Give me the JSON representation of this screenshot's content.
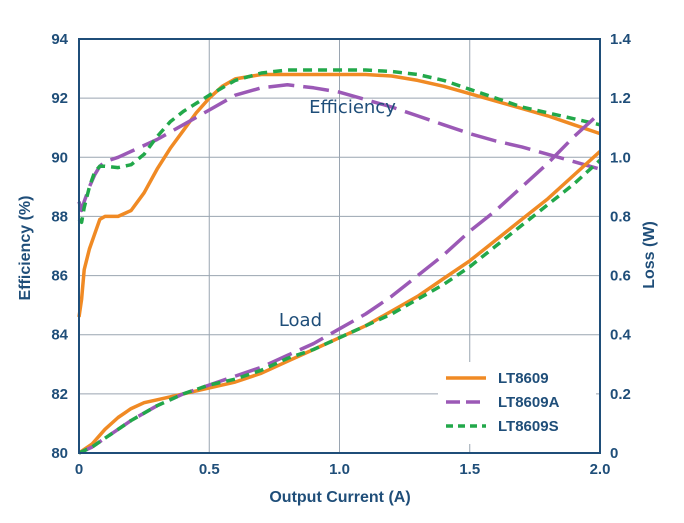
{
  "chart_data": {
    "type": "line",
    "xlabel": "Output Current (A)",
    "ylabel": "Efficiency (%)",
    "y2label": "Loss (W)",
    "xlim": [
      0,
      2.0
    ],
    "ylim": [
      80,
      94
    ],
    "y2lim": [
      0,
      1.4
    ],
    "xticks": [
      "0",
      "0.5",
      "1.0",
      "1.5",
      "2.0"
    ],
    "yticks": [
      "80",
      "82",
      "84",
      "86",
      "88",
      "90",
      "92",
      "94"
    ],
    "y2ticks": [
      "0",
      "0.2",
      "0.4",
      "0.6",
      "0.8",
      "1.0",
      "1.2",
      "1.4"
    ],
    "grid": true,
    "legend_position": "bottom-right",
    "annotations": [
      {
        "text": "Efficiency",
        "x": 1.05,
        "y": 91.5
      },
      {
        "text": "Load",
        "x": 0.85,
        "y": 84.3
      }
    ],
    "series": [
      {
        "name": "LT8609",
        "color": "#f08a24",
        "dash": "solid",
        "axis": "left",
        "group": "efficiency",
        "x": [
          0.0,
          0.01,
          0.02,
          0.04,
          0.06,
          0.08,
          0.1,
          0.15,
          0.2,
          0.25,
          0.3,
          0.35,
          0.4,
          0.45,
          0.5,
          0.55,
          0.6,
          0.7,
          0.8,
          0.9,
          1.0,
          1.1,
          1.2,
          1.3,
          1.4,
          1.5,
          1.6,
          1.7,
          1.8,
          1.9,
          2.0
        ],
        "y": [
          84.6,
          85.2,
          86.2,
          86.9,
          87.4,
          87.9,
          88.0,
          88.0,
          88.2,
          88.8,
          89.6,
          90.3,
          90.9,
          91.5,
          92.0,
          92.4,
          92.65,
          92.8,
          92.8,
          92.8,
          92.8,
          92.8,
          92.75,
          92.6,
          92.4,
          92.15,
          91.9,
          91.65,
          91.4,
          91.1,
          90.8
        ]
      },
      {
        "name": "LT8609A",
        "color": "#9b59b6",
        "dash": "long",
        "axis": "left",
        "group": "efficiency",
        "x": [
          0.0,
          0.01,
          0.02,
          0.04,
          0.06,
          0.08,
          0.1,
          0.15,
          0.2,
          0.3,
          0.4,
          0.5,
          0.6,
          0.7,
          0.8,
          0.9,
          1.0,
          1.1,
          1.2,
          1.3,
          1.4,
          1.5,
          1.6,
          1.7,
          1.8,
          1.9,
          2.0
        ],
        "y": [
          88.5,
          88.2,
          88.5,
          89.0,
          89.4,
          89.7,
          89.85,
          90.0,
          90.2,
          90.6,
          91.1,
          91.6,
          92.1,
          92.35,
          92.45,
          92.35,
          92.2,
          91.95,
          91.7,
          91.4,
          91.1,
          90.8,
          90.55,
          90.35,
          90.1,
          89.85,
          89.6
        ]
      },
      {
        "name": "LT8609S",
        "color": "#22a84a",
        "dash": "short",
        "axis": "left",
        "group": "efficiency",
        "x": [
          0.0,
          0.01,
          0.02,
          0.04,
          0.06,
          0.08,
          0.1,
          0.15,
          0.2,
          0.25,
          0.3,
          0.35,
          0.4,
          0.5,
          0.6,
          0.7,
          0.8,
          0.9,
          1.0,
          1.1,
          1.2,
          1.3,
          1.4,
          1.5,
          1.6,
          1.7,
          1.8,
          1.9,
          2.0
        ],
        "y": [
          87.9,
          87.8,
          88.3,
          89.0,
          89.5,
          89.7,
          89.7,
          89.65,
          89.75,
          90.1,
          90.7,
          91.2,
          91.55,
          92.1,
          92.6,
          92.85,
          92.95,
          92.95,
          92.95,
          92.95,
          92.9,
          92.8,
          92.6,
          92.3,
          92.0,
          91.7,
          91.5,
          91.3,
          91.1
        ]
      },
      {
        "name": "LT8609",
        "color": "#f08a24",
        "dash": "solid",
        "axis": "right",
        "group": "loss",
        "x": [
          0.0,
          0.05,
          0.1,
          0.15,
          0.2,
          0.25,
          0.3,
          0.4,
          0.5,
          0.6,
          0.7,
          0.8,
          0.9,
          1.0,
          1.1,
          1.2,
          1.3,
          1.4,
          1.5,
          1.6,
          1.7,
          1.8,
          1.9,
          2.0
        ],
        "y": [
          0.0,
          0.03,
          0.08,
          0.12,
          0.15,
          0.17,
          0.18,
          0.2,
          0.22,
          0.24,
          0.27,
          0.31,
          0.35,
          0.39,
          0.43,
          0.48,
          0.53,
          0.59,
          0.65,
          0.72,
          0.79,
          0.86,
          0.94,
          1.02
        ]
      },
      {
        "name": "LT8609A",
        "color": "#9b59b6",
        "dash": "long",
        "axis": "right",
        "group": "loss",
        "x": [
          0.0,
          0.05,
          0.1,
          0.2,
          0.3,
          0.4,
          0.5,
          0.6,
          0.7,
          0.8,
          0.9,
          1.0,
          1.1,
          1.2,
          1.3,
          1.4,
          1.5,
          1.6,
          1.7,
          1.8,
          1.9,
          2.0
        ],
        "y": [
          0.0,
          0.02,
          0.05,
          0.11,
          0.16,
          0.2,
          0.23,
          0.26,
          0.29,
          0.33,
          0.37,
          0.42,
          0.47,
          0.53,
          0.6,
          0.67,
          0.75,
          0.82,
          0.9,
          0.98,
          1.07,
          1.15
        ]
      },
      {
        "name": "LT8609S",
        "color": "#22a84a",
        "dash": "short",
        "axis": "right",
        "group": "loss",
        "x": [
          0.0,
          0.05,
          0.1,
          0.2,
          0.3,
          0.4,
          0.5,
          0.6,
          0.7,
          0.8,
          0.9,
          1.0,
          1.1,
          1.2,
          1.3,
          1.4,
          1.5,
          1.6,
          1.7,
          1.8,
          1.9,
          2.0
        ],
        "y": [
          0.0,
          0.02,
          0.05,
          0.11,
          0.16,
          0.2,
          0.23,
          0.25,
          0.28,
          0.32,
          0.35,
          0.39,
          0.43,
          0.47,
          0.52,
          0.57,
          0.63,
          0.7,
          0.77,
          0.84,
          0.91,
          0.99
        ]
      }
    ],
    "legend": [
      "LT8609",
      "LT8609A",
      "LT8609S"
    ]
  }
}
